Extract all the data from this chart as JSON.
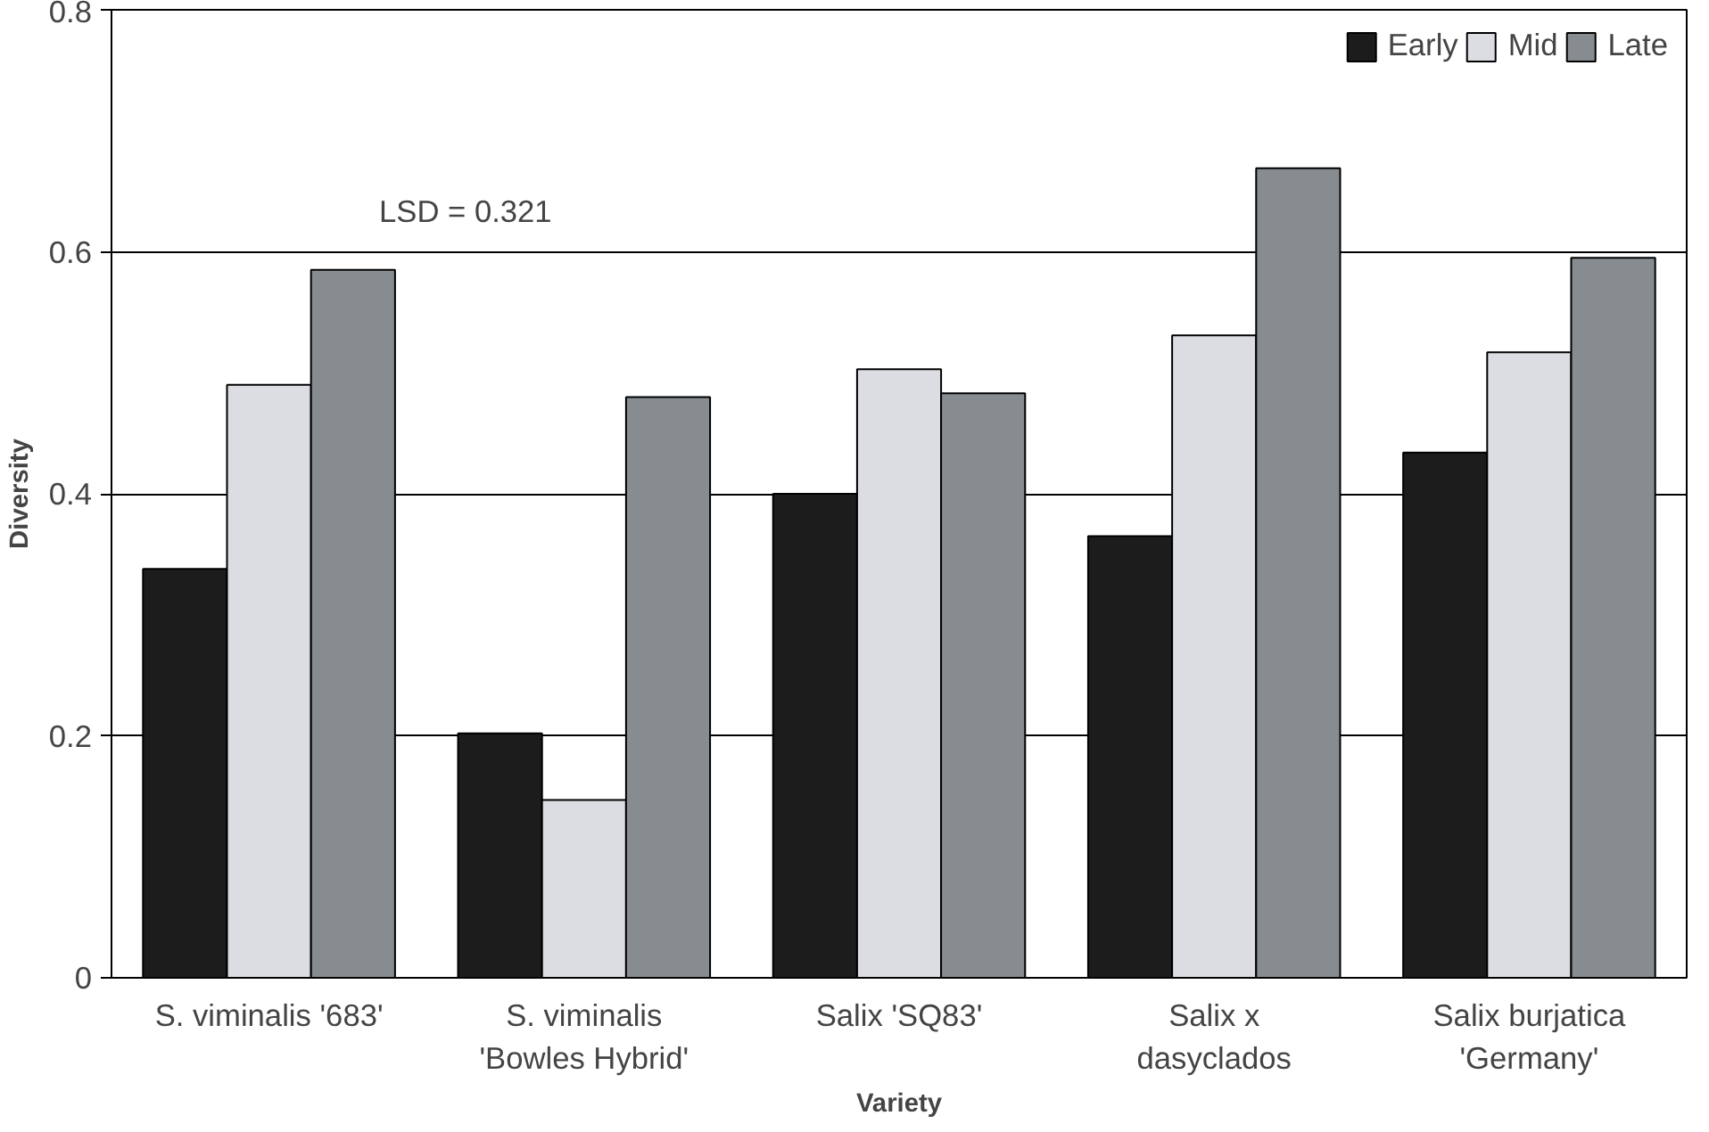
{
  "chart_data": {
    "type": "bar",
    "xlabel": "Variety",
    "ylabel": "Diversity",
    "categories": [
      "S. viminalis '683'",
      "S. viminalis\n'Bowles Hybrid'",
      "Salix 'SQ83'",
      "Salix x\ndasyclados",
      "Salix burjatica\n'Germany'"
    ],
    "series": [
      {
        "name": "Early",
        "color": "#1c1c1c",
        "values": [
          0.338,
          0.202,
          0.4,
          0.365,
          0.434
        ]
      },
      {
        "name": "Mid",
        "color": "#dcdde2",
        "values": [
          0.49,
          0.147,
          0.503,
          0.531,
          0.517
        ]
      },
      {
        "name": "Late",
        "color": "#878c91",
        "values": [
          0.585,
          0.48,
          0.483,
          0.669,
          0.595
        ]
      }
    ],
    "annotations": [
      "LSD = 0.321"
    ],
    "ylim": [
      0,
      0.8
    ],
    "yticks": [
      0,
      0.2,
      0.4,
      0.6,
      0.8
    ],
    "grid": "y",
    "legend": "top right"
  }
}
